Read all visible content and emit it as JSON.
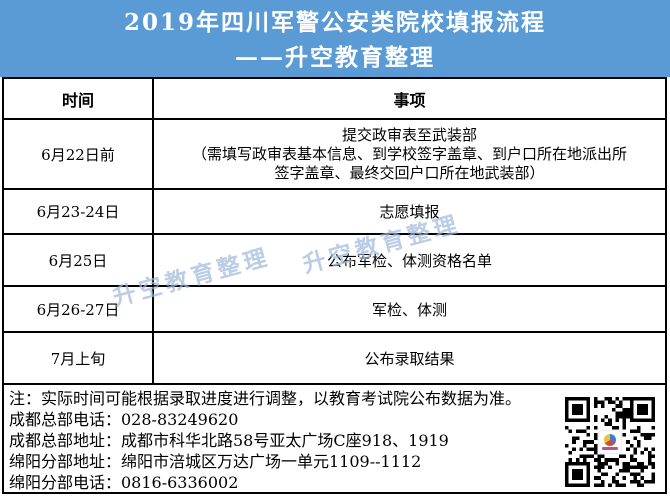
{
  "banner": {
    "line1": "2019年四川军警公安类院校填报流程",
    "line2": "——升空教育整理",
    "bg_color": "#5B9BD5",
    "text_color": "#FFFFFF"
  },
  "table": {
    "headers": [
      "时间",
      "事项"
    ],
    "rows": [
      {
        "time": "6月22日前",
        "event": "提交政审表至武装部",
        "detail1": "（需填写政审表基本信息、到学校签字盖章、到户口所在地派出所",
        "detail2": "签字盖章、最终交回户口所在地武装部）"
      },
      {
        "time": "6月23-24日",
        "event": "志愿填报"
      },
      {
        "time": "6月25日",
        "event": "公布军检、体测资格名单"
      },
      {
        "time": "6月26-27日",
        "event": "军检、体测"
      },
      {
        "time": "7月上旬",
        "event": "公布录取结果"
      }
    ]
  },
  "notes": [
    "注：实际时间可能根据录取进度进行调整，以教育考试院公布数据为准。",
    "成都总部电话：028-83249620",
    "成都总部地址：成都市科华北路58号亚太广场C座918、1919",
    "绵阳分部地址：绵阳市涪城区万达广场一单元1109--1112",
    "绵阳分部电话：0816-6336002"
  ],
  "watermark": {
    "text": "升空教育整理",
    "color": "#9FB9DB"
  }
}
